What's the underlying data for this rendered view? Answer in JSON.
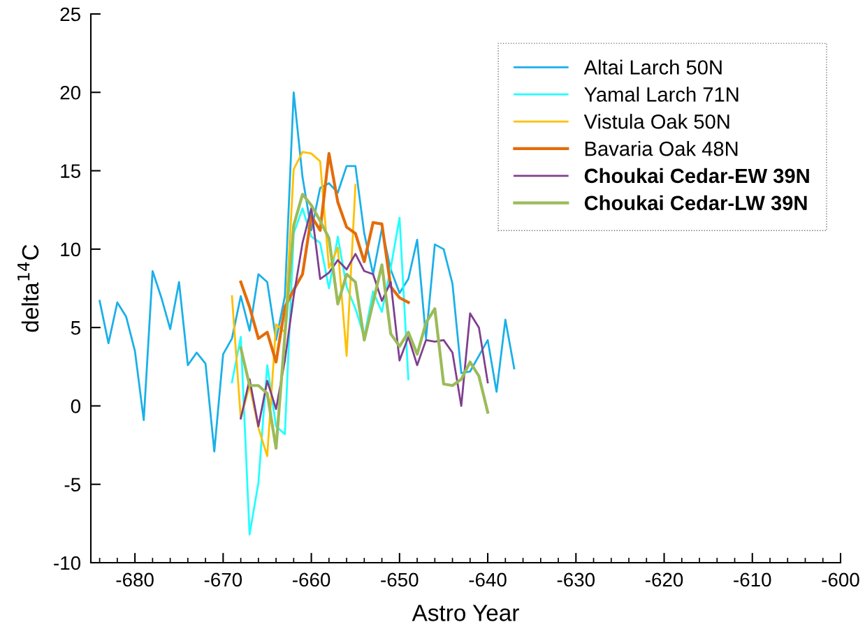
{
  "chart_data": {
    "type": "line",
    "xlabel": "Astro Year",
    "ylabel": "delta$^{14}$C",
    "xlim": [
      -685,
      -600
    ],
    "xticks": [
      -680,
      -670,
      -660,
      -650,
      -640,
      -630,
      -620,
      -610,
      -600
    ],
    "ylim": [
      -10,
      25
    ],
    "yticks": [
      -10,
      -5,
      0,
      5,
      10,
      15,
      20,
      25
    ],
    "grid": false,
    "legend": "top right",
    "marker": "none",
    "line_style": "solid",
    "series": [
      {
        "name": "Altai Larch 50N",
        "color": "#1ab0e8",
        "x": [
          -684,
          -683,
          -682,
          -681,
          -680,
          -679,
          -678,
          -677,
          -676,
          -675,
          -674,
          -673,
          -672,
          -671,
          -670,
          -669,
          -668,
          -667,
          -666,
          -665,
          -664,
          -663,
          -662,
          -661,
          -660,
          -659,
          -658,
          -657,
          -656,
          -655,
          -654,
          -653,
          -652,
          -651,
          -650,
          -649,
          -648,
          -647,
          -646,
          -645,
          -644,
          -643,
          -642,
          -641,
          -640,
          -639,
          -638,
          -637
        ],
        "values": [
          6.7,
          4.0,
          6.6,
          5.7,
          3.5,
          -0.9,
          8.6,
          6.9,
          4.9,
          7.9,
          2.6,
          3.4,
          2.7,
          -2.9,
          3.3,
          4.3,
          7.0,
          4.8,
          8.4,
          7.9,
          4.2,
          7.0,
          20.0,
          14.6,
          11.2,
          13.9,
          14.2,
          13.6,
          15.3,
          15.3,
          11.0,
          8.4,
          11.3,
          8.7,
          7.2,
          8.1,
          10.6,
          4.3,
          10.3,
          10.0,
          7.8,
          2.1,
          2.2,
          3.2,
          4.2,
          0.9,
          5.5,
          2.4
        ]
      },
      {
        "name": "Yamal Larch 71N",
        "color": "#22ffff",
        "x": [
          -669,
          -668,
          -667,
          -666,
          -665,
          -664,
          -663,
          -662,
          -661,
          -660,
          -659,
          -658,
          -657,
          -656,
          -655,
          -654,
          -653,
          -652,
          -651,
          -650,
          -649
        ],
        "values": [
          1.5,
          4.4,
          -8.2,
          -4.9,
          2.6,
          -1.3,
          -1.8,
          11.0,
          12.6,
          10.8,
          10.4,
          7.5,
          10.8,
          7.6,
          6.2,
          4.4,
          7.3,
          6.0,
          8.8,
          12.0,
          1.7
        ]
      },
      {
        "name": "Vistula Oak 50N",
        "color": "#ffc000",
        "x": [
          -669,
          -668,
          -667,
          -666,
          -665,
          -664,
          -663,
          -662,
          -661,
          -660,
          -659,
          -658,
          -657,
          -656,
          -655
        ],
        "values": [
          7.0,
          -0.8,
          1.3,
          -1.4,
          -3.2,
          5.2,
          4.7,
          15.1,
          16.2,
          16.1,
          15.6,
          8.8,
          10.1,
          3.2,
          14.1
        ]
      },
      {
        "name": "Bavaria Oak 48N",
        "color": "#e36c0a",
        "x": [
          -668,
          -667,
          -666,
          -665,
          -664,
          -663,
          -662,
          -661,
          -660,
          -659,
          -658,
          -657,
          -656,
          -655,
          -654,
          -653,
          -652,
          -651,
          -650,
          -649
        ],
        "values": [
          7.9,
          6.3,
          4.3,
          4.7,
          2.8,
          6.3,
          7.4,
          8.4,
          12.1,
          11.2,
          16.1,
          13.0,
          11.4,
          11.0,
          9.2,
          11.7,
          11.6,
          7.6,
          6.9,
          6.6
        ]
      },
      {
        "name": "Choukai Cedar-EW 39N",
        "color": "#7f3f8f",
        "x": [
          -668,
          -667,
          -666,
          -665,
          -664,
          -663,
          -662,
          -661,
          -660,
          -659,
          -658,
          -657,
          -656,
          -655,
          -654,
          -653,
          -652,
          -651,
          -650,
          -649,
          -648,
          -647,
          -646,
          -645,
          -644,
          -643,
          -642,
          -641,
          -640
        ],
        "values": [
          -0.8,
          1.7,
          -1.3,
          1.6,
          -0.2,
          2.9,
          7.0,
          10.4,
          12.6,
          8.1,
          8.5,
          9.3,
          8.7,
          9.7,
          8.6,
          8.4,
          6.7,
          7.9,
          2.9,
          4.4,
          2.6,
          4.2,
          4.1,
          4.2,
          3.4,
          0.0,
          5.9,
          5.0,
          1.5
        ]
      },
      {
        "name": "Choukai Cedar-LW 39N",
        "color": "#9bbb59",
        "x": [
          -668,
          -667,
          -666,
          -665,
          -664,
          -663,
          -662,
          -661,
          -660,
          -659,
          -658,
          -657,
          -656,
          -655,
          -654,
          -653,
          -652,
          -651,
          -650,
          -649,
          -648,
          -647,
          -646,
          -645,
          -644,
          -643,
          -642,
          -641,
          -640
        ],
        "values": [
          3.7,
          1.3,
          1.3,
          0.8,
          -2.7,
          4.5,
          11.5,
          13.5,
          12.8,
          11.8,
          10.7,
          6.5,
          8.4,
          7.9,
          4.2,
          6.6,
          9.0,
          4.6,
          3.8,
          4.7,
          3.3,
          5.3,
          6.2,
          1.4,
          1.3,
          1.7,
          2.8,
          1.9,
          -0.4
        ]
      }
    ]
  }
}
